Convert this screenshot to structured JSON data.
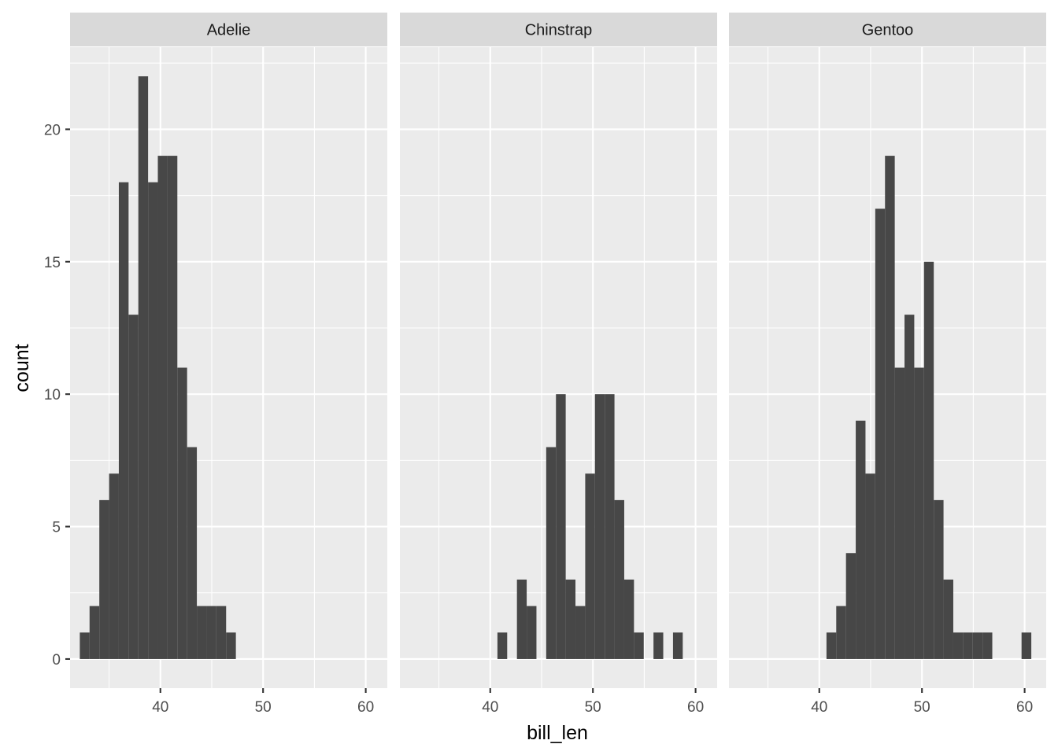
{
  "chart_data": {
    "type": "bar",
    "subtype": "faceted-histogram",
    "xlabel": "bill_len",
    "ylabel": "count",
    "xlim": [
      31.2,
      62.1
    ],
    "ylim": [
      -1.1,
      23.1
    ],
    "x_ticks": [
      40,
      50,
      60
    ],
    "x_minor_ticks": [
      35,
      45,
      55
    ],
    "y_ticks": [
      0,
      5,
      10,
      15,
      20
    ],
    "y_minor_ticks": [
      2.5,
      7.5,
      12.5,
      17.5,
      22.5
    ],
    "bin_width": 0.95,
    "grid": true,
    "facets": [
      {
        "name": "Adelie",
        "bins": [
          {
            "x0": 32.15,
            "x1": 33.1,
            "count": 1
          },
          {
            "x0": 33.1,
            "x1": 34.05,
            "count": 2
          },
          {
            "x0": 34.05,
            "x1": 35.0,
            "count": 6
          },
          {
            "x0": 35.0,
            "x1": 35.95,
            "count": 7
          },
          {
            "x0": 35.95,
            "x1": 36.9,
            "count": 18
          },
          {
            "x0": 36.9,
            "x1": 37.85,
            "count": 13
          },
          {
            "x0": 37.85,
            "x1": 38.8,
            "count": 22
          },
          {
            "x0": 38.8,
            "x1": 39.75,
            "count": 18
          },
          {
            "x0": 39.75,
            "x1": 40.7,
            "count": 19
          },
          {
            "x0": 40.7,
            "x1": 41.65,
            "count": 19
          },
          {
            "x0": 41.65,
            "x1": 42.6,
            "count": 11
          },
          {
            "x0": 42.6,
            "x1": 43.55,
            "count": 8
          },
          {
            "x0": 43.55,
            "x1": 44.5,
            "count": 2
          },
          {
            "x0": 44.5,
            "x1": 45.45,
            "count": 2
          },
          {
            "x0": 45.45,
            "x1": 46.4,
            "count": 2
          },
          {
            "x0": 46.4,
            "x1": 47.35,
            "count": 1
          }
        ]
      },
      {
        "name": "Chinstrap",
        "bins": [
          {
            "x0": 40.7,
            "x1": 41.65,
            "count": 1
          },
          {
            "x0": 42.6,
            "x1": 43.55,
            "count": 3
          },
          {
            "x0": 43.55,
            "x1": 44.5,
            "count": 2
          },
          {
            "x0": 45.45,
            "x1": 46.4,
            "count": 8
          },
          {
            "x0": 46.4,
            "x1": 47.35,
            "count": 10
          },
          {
            "x0": 47.35,
            "x1": 48.3,
            "count": 3
          },
          {
            "x0": 48.3,
            "x1": 49.25,
            "count": 2
          },
          {
            "x0": 49.25,
            "x1": 50.2,
            "count": 7
          },
          {
            "x0": 50.2,
            "x1": 51.15,
            "count": 10
          },
          {
            "x0": 51.15,
            "x1": 52.1,
            "count": 10
          },
          {
            "x0": 52.1,
            "x1": 53.05,
            "count": 6
          },
          {
            "x0": 53.05,
            "x1": 54.0,
            "count": 3
          },
          {
            "x0": 54.0,
            "x1": 54.95,
            "count": 1
          },
          {
            "x0": 55.9,
            "x1": 56.85,
            "count": 1
          },
          {
            "x0": 57.8,
            "x1": 58.75,
            "count": 1
          }
        ]
      },
      {
        "name": "Gentoo",
        "bins": [
          {
            "x0": 40.7,
            "x1": 41.65,
            "count": 1
          },
          {
            "x0": 41.65,
            "x1": 42.6,
            "count": 2
          },
          {
            "x0": 42.6,
            "x1": 43.55,
            "count": 4
          },
          {
            "x0": 43.55,
            "x1": 44.5,
            "count": 9
          },
          {
            "x0": 44.5,
            "x1": 45.45,
            "count": 7
          },
          {
            "x0": 45.45,
            "x1": 46.4,
            "count": 17
          },
          {
            "x0": 46.4,
            "x1": 47.35,
            "count": 19
          },
          {
            "x0": 47.35,
            "x1": 48.3,
            "count": 11
          },
          {
            "x0": 48.3,
            "x1": 49.25,
            "count": 13
          },
          {
            "x0": 49.25,
            "x1": 50.2,
            "count": 11
          },
          {
            "x0": 50.2,
            "x1": 51.15,
            "count": 15
          },
          {
            "x0": 51.15,
            "x1": 52.1,
            "count": 6
          },
          {
            "x0": 52.1,
            "x1": 53.05,
            "count": 3
          },
          {
            "x0": 53.05,
            "x1": 54.0,
            "count": 1
          },
          {
            "x0": 54.0,
            "x1": 54.95,
            "count": 1
          },
          {
            "x0": 54.95,
            "x1": 55.9,
            "count": 1
          },
          {
            "x0": 55.9,
            "x1": 56.85,
            "count": 1
          },
          {
            "x0": 59.7,
            "x1": 60.65,
            "count": 1
          }
        ]
      }
    ]
  },
  "colors": {
    "panel_background": "#EBEBEB",
    "strip_background": "#D9D9D9",
    "grid": "#FFFFFF",
    "bar_fill": "#474747",
    "tick_text": "#4D4D4D",
    "axis_title_text": "#000000"
  }
}
